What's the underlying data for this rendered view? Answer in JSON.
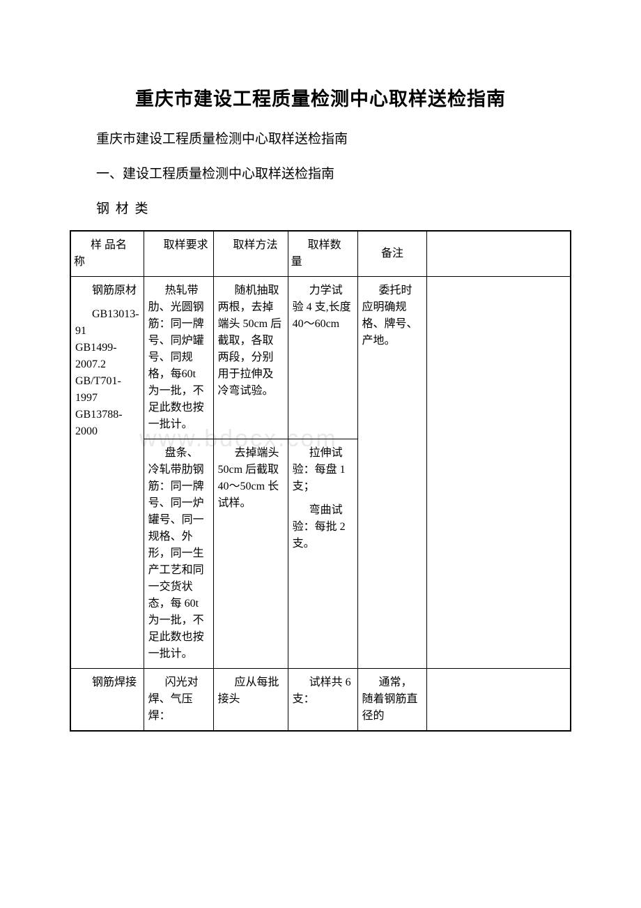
{
  "mainTitle": "重庆市建设工程质量检测中心取样送检指南",
  "subtitle": "重庆市建设工程质量检测中心取样送检指南",
  "sectionTitle": "一、建设工程质量检测中心取样送检指南",
  "categoryTitle": "钢 材 类",
  "watermark": "www.bdocx.com",
  "headers": {
    "col1": "样 品名 称",
    "col2": "取样要求",
    "col3": "取样方法",
    "col4": "取样数 量",
    "col5": "备注",
    "col6": ""
  },
  "row1": {
    "sampleName": "钢筋原材",
    "standards": "GB13013-91\nGB1499-2007.2\nGB/T701-1997\nGB13788-2000",
    "req1": "热轧带肋、光圆钢筋：同一牌号、同炉罐号、同规格，每60t 为一批，不足此数也按一批计。",
    "method1": "随机抽取两根，去掉端头 50cm 后截取，各取两段，分别用于拉伸及冷弯试验。",
    "qty1": "力学试验 4 支,长度 40～60cm",
    "req2": "盘条、冷轧带肋钢筋：同一牌号、同一炉罐号、同一规格、外形，同一生产工艺和同一交货状态，每 60t 为一批，不足此数也按一批计。",
    "method2": "去掉端头 50cm 后截取 40～50cm 长试样。",
    "qty2_1": "拉伸试验：每盘 1 支；",
    "qty2_2": "弯曲试验：每批 2 支。",
    "remark": "委托时应明确规格、牌号、产地。"
  },
  "row2": {
    "sampleName": "钢筋焊接",
    "req": "闪光对焊、气压焊：",
    "method": "应从每批接头",
    "qty": "试样共 6 支：",
    "remark": "通常，随着钢筋直径的"
  },
  "colors": {
    "background": "#ffffff",
    "text": "#000000",
    "border": "#000000",
    "watermark": "#e8e8e8"
  },
  "fonts": {
    "mainTitleSize": 27,
    "bodySize": 19,
    "tableSize": 16
  }
}
